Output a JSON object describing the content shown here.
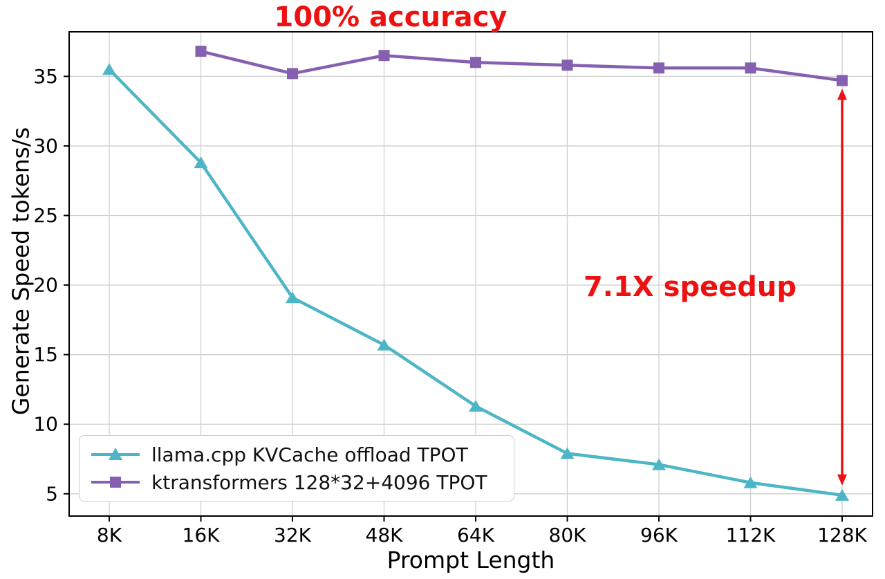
{
  "colors": {
    "llama": "#4db6c6",
    "ktransformers": "#8660b0",
    "annotation": "#ee1111",
    "grid": "#cfcfcf",
    "axis": "#000000",
    "legend_border": "#cccccc"
  },
  "chart_data": {
    "type": "line",
    "title": "100% accuracy",
    "xlabel": "Prompt Length",
    "ylabel": "Generate Speed tokens/s",
    "categories": [
      "8K",
      "16K",
      "32K",
      "48K",
      "64K",
      "80K",
      "96K",
      "112K",
      "128K"
    ],
    "yticks": [
      5,
      10,
      15,
      20,
      25,
      30,
      35
    ],
    "ylim": [
      3.4,
      38.2
    ],
    "grid": true,
    "legend_position": "lower left",
    "series": [
      {
        "name": "llama.cpp KVCache offload TPOT",
        "marker": "triangle",
        "color": "#4db6c6",
        "values": [
          35.5,
          28.8,
          19.1,
          15.7,
          11.3,
          7.9,
          7.1,
          5.8,
          4.9
        ]
      },
      {
        "name": "ktransformers 128*32+4096 TPOT",
        "marker": "square",
        "color": "#8660b0",
        "values": [
          null,
          36.8,
          35.2,
          36.5,
          36.0,
          35.8,
          35.6,
          35.6,
          34.7
        ]
      }
    ],
    "speedup_annotation": {
      "text": "7.1X speedup",
      "x_category": "128K",
      "from": 34.7,
      "to": 4.9
    }
  }
}
